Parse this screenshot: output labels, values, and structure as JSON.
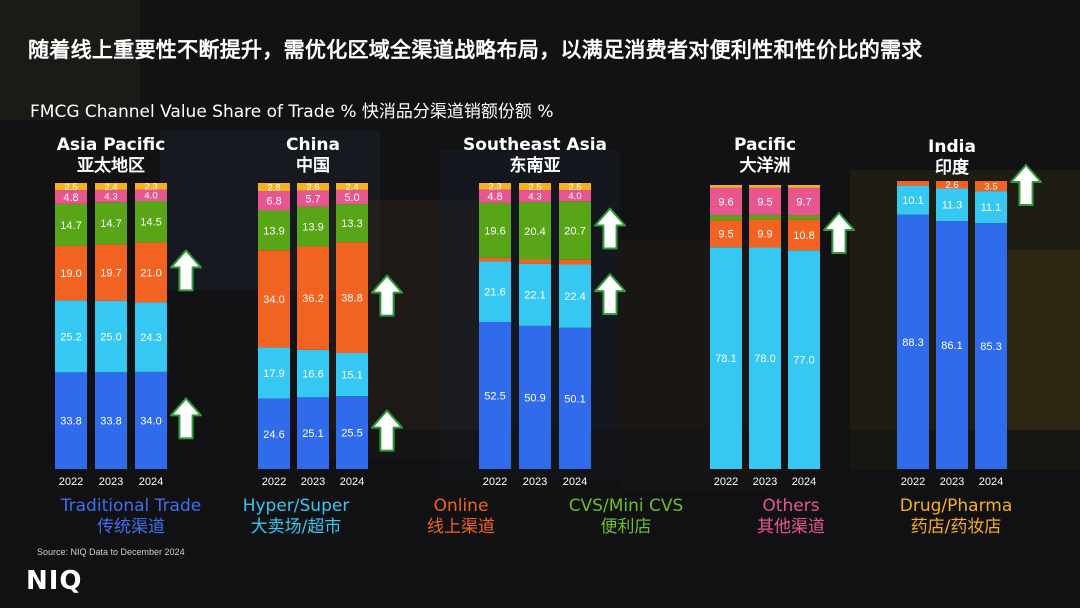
{
  "headline": "随着线上重要性不断提升，需优化区域全渠道战略布局，以满足消费者对便利性和性价比的需求",
  "subtitle": "FMCG Channel Value Share of Trade % 快消品分渠道销额份额 %",
  "source": "Source: NIQ Data to December 2024",
  "logo": "NIQ",
  "colors": {
    "traditional": "#2f6bea",
    "hyper": "#35c8f2",
    "online": "#f26322",
    "cvs": "#58a618",
    "others": "#e8568f",
    "drug": "#f7b11c",
    "arrow_fill": "#ffffff",
    "arrow_stroke": "#2e9a3a"
  },
  "legend": [
    {
      "en": "Traditional Trade",
      "zh": "传统渠道",
      "color": "#3f6ff0"
    },
    {
      "en": "Hyper/Super",
      "zh": "大卖场/超市",
      "color": "#35c8f2"
    },
    {
      "en": "Online",
      "zh": "线上渠道",
      "color": "#f26322"
    },
    {
      "en": "CVS/Mini CVS",
      "zh": "便利店",
      "color": "#6bbf2a"
    },
    {
      "en": "Others",
      "zh": "其他渠道",
      "color": "#e8568f"
    },
    {
      "en": "Drug/Pharma",
      "zh": "药店/药妆店",
      "color": "#f7b11c"
    }
  ],
  "chart_data": [
    {
      "type": "bar",
      "stacked": true,
      "title": "Asia Pacific",
      "title_zh": "亚太地区",
      "categories": [
        "2022",
        "2023",
        "2024"
      ],
      "series": [
        {
          "name": "Traditional Trade",
          "values": [
            33.8,
            33.8,
            34.0
          ]
        },
        {
          "name": "Hyper/Super",
          "values": [
            25.2,
            25.0,
            24.3
          ]
        },
        {
          "name": "Online",
          "values": [
            19.0,
            19.7,
            21.0
          ]
        },
        {
          "name": "CVS/Mini CVS",
          "values": [
            14.7,
            14.7,
            14.5
          ]
        },
        {
          "name": "Others",
          "values": [
            4.8,
            4.3,
            4.0
          ]
        },
        {
          "name": "Drug/Pharma",
          "values": [
            2.5,
            2.4,
            2.3
          ]
        }
      ],
      "up_arrows": [
        "Online",
        "Traditional Trade"
      ]
    },
    {
      "type": "bar",
      "stacked": true,
      "title": "China",
      "title_zh": "中国",
      "categories": [
        "2022",
        "2023",
        "2024"
      ],
      "series": [
        {
          "name": "Traditional Trade",
          "values": [
            24.6,
            25.1,
            25.5
          ]
        },
        {
          "name": "Hyper/Super",
          "values": [
            17.9,
            16.6,
            15.1
          ]
        },
        {
          "name": "Online",
          "values": [
            34.0,
            36.2,
            38.8
          ]
        },
        {
          "name": "CVS/Mini CVS",
          "values": [
            13.9,
            13.9,
            13.3
          ]
        },
        {
          "name": "Others",
          "values": [
            6.8,
            5.7,
            5.0
          ]
        },
        {
          "name": "Drug/Pharma",
          "values": [
            2.8,
            2.6,
            2.4
          ]
        }
      ],
      "up_arrows": [
        "Online",
        "Traditional Trade"
      ]
    },
    {
      "type": "bar",
      "stacked": true,
      "title": "Southeast Asia",
      "title_zh": "东南亚",
      "categories": [
        "2022",
        "2023",
        "2024"
      ],
      "series": [
        {
          "name": "Traditional Trade",
          "values": [
            52.5,
            50.9,
            50.1
          ]
        },
        {
          "name": "Hyper/Super",
          "values": [
            21.6,
            22.1,
            22.4
          ]
        },
        {
          "name": "Online",
          "values": [
            1.3,
            1.5,
            1.7
          ]
        },
        {
          "name": "CVS/Mini CVS",
          "values": [
            19.6,
            20.4,
            20.7
          ]
        },
        {
          "name": "Others",
          "values": [
            4.8,
            4.3,
            4.0
          ]
        },
        {
          "name": "Drug/Pharma",
          "values": [
            2.3,
            2.5,
            2.5
          ]
        }
      ],
      "up_arrows": [
        "CVS/Mini CVS",
        "Hyper/Super"
      ]
    },
    {
      "type": "bar",
      "stacked": true,
      "title": "Pacific",
      "title_zh": "大洋洲",
      "categories": [
        "2022",
        "2023",
        "2024"
      ],
      "series": [
        {
          "name": "Hyper/Super",
          "values": [
            78.1,
            78.0,
            77.0
          ]
        },
        {
          "name": "Online",
          "values": [
            9.5,
            9.9,
            10.8
          ]
        },
        {
          "name": "CVS/Mini CVS",
          "values": [
            1.8,
            1.6,
            1.5
          ]
        },
        {
          "name": "Others",
          "values": [
            9.6,
            9.5,
            9.7
          ]
        },
        {
          "name": "Drug/Pharma",
          "values": [
            1.0,
            1.0,
            1.0
          ]
        }
      ],
      "up_arrows": [
        "Online"
      ]
    },
    {
      "type": "bar",
      "stacked": true,
      "title": "India",
      "title_zh": "印度",
      "categories": [
        "2022",
        "2023",
        "2024"
      ],
      "series": [
        {
          "name": "Traditional Trade",
          "values": [
            88.3,
            86.1,
            85.3
          ]
        },
        {
          "name": "Hyper/Super",
          "values": [
            10.1,
            11.3,
            11.1
          ]
        },
        {
          "name": "Online",
          "values": [
            1.6,
            2.6,
            3.5
          ]
        }
      ],
      "up_arrows": [
        "Online"
      ]
    }
  ]
}
